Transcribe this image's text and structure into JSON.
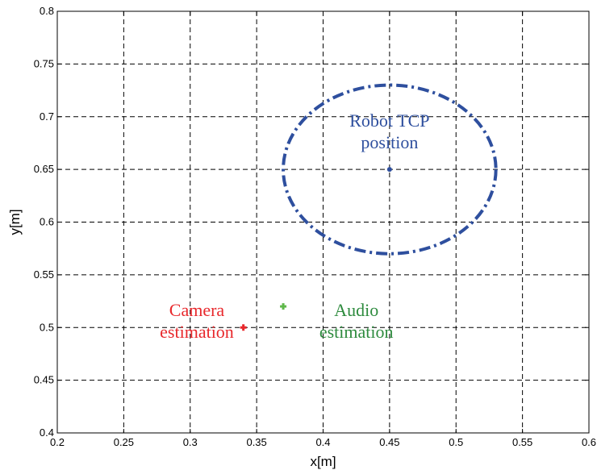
{
  "chart_data": {
    "type": "scatter",
    "title": "",
    "xlabel": "x[m]",
    "ylabel": "y[m]",
    "xlim": [
      0.2,
      0.6
    ],
    "ylim": [
      0.4,
      0.8
    ],
    "x_ticks": [
      0.2,
      0.25,
      0.3,
      0.35,
      0.4,
      0.45,
      0.5,
      0.55,
      0.6
    ],
    "y_ticks": [
      0.4,
      0.45,
      0.5,
      0.55,
      0.6,
      0.65,
      0.7,
      0.75,
      0.8
    ],
    "x_tick_labels": [
      "0.2",
      "0.25",
      "0.3",
      "0.35",
      "0.4",
      "0.45",
      "0.5",
      "0.55",
      "0.6"
    ],
    "y_tick_labels": [
      "0.4",
      "0.45",
      "0.5",
      "0.55",
      "0.6",
      "0.65",
      "0.7",
      "0.75",
      "0.8"
    ],
    "grid": true,
    "grid_style": "dashed",
    "points": [
      {
        "key": "robot-tcp",
        "x": 0.45,
        "y": 0.65,
        "color": "#2e4f9e",
        "marker": "dot"
      },
      {
        "key": "camera",
        "x": 0.34,
        "y": 0.5,
        "color": "#e8282c",
        "marker": "plus"
      },
      {
        "key": "audio",
        "x": 0.37,
        "y": 0.52,
        "color": "#5fb84a",
        "marker": "plus"
      }
    ],
    "ellipse": {
      "cx": 0.45,
      "cy": 0.65,
      "rx": 0.08,
      "ry": 0.08,
      "color": "#2e4f9e",
      "style": "dash-dot"
    },
    "annotations": [
      {
        "key": "robot-tcp",
        "lines": [
          "Robot TCP",
          "position"
        ],
        "color": "#2e4f9e",
        "x": 0.45,
        "y": 0.7
      },
      {
        "key": "camera",
        "lines": [
          "Camera",
          "estimation"
        ],
        "color": "#e8282c",
        "x": 0.305,
        "y": 0.52
      },
      {
        "key": "audio",
        "lines": [
          "Audio",
          "estimation"
        ],
        "color": "#2e8b3e",
        "x": 0.425,
        "y": 0.52
      }
    ]
  }
}
